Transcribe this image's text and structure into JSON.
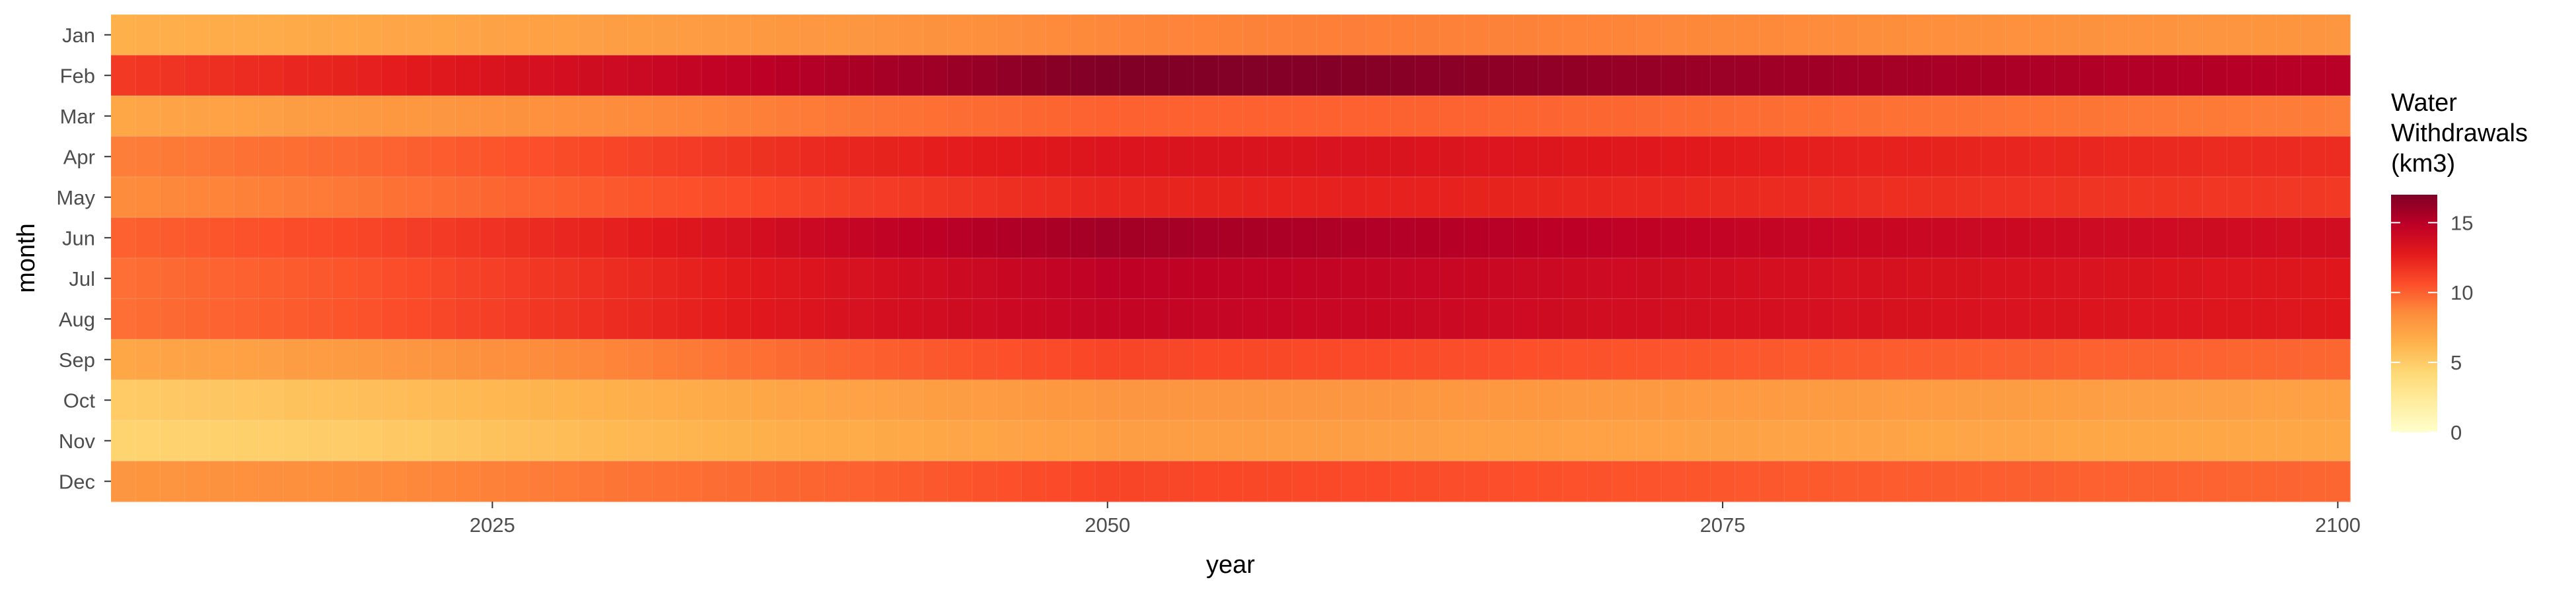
{
  "chart_data": {
    "type": "heatmap",
    "title": "",
    "xlabel": "year",
    "ylabel": "month",
    "x_start": 2010,
    "x_end": 2100,
    "xlim": [
      2009.5,
      2100.5
    ],
    "x_ticks": [
      2025,
      2050,
      2075,
      2100
    ],
    "months": [
      "Jan",
      "Feb",
      "Mar",
      "Apr",
      "May",
      "Jun",
      "Jul",
      "Aug",
      "Sep",
      "Oct",
      "Nov",
      "Dec"
    ],
    "year_anchors": [
      2010,
      2020,
      2030,
      2040,
      2050,
      2060,
      2070,
      2080,
      2090,
      2100
    ],
    "values_by_month": [
      {
        "month": "Jan",
        "values": [
          6.5,
          7.0,
          7.5,
          8.0,
          8.7,
          9.0,
          8.8,
          8.5,
          8.2,
          8.0
        ]
      },
      {
        "month": "Feb",
        "values": [
          11.5,
          12.5,
          14.0,
          15.5,
          17.0,
          16.8,
          16.3,
          15.8,
          15.3,
          15.0
        ]
      },
      {
        "month": "Mar",
        "values": [
          7.0,
          7.8,
          8.5,
          9.3,
          10.0,
          10.0,
          9.8,
          9.5,
          9.3,
          9.0
        ]
      },
      {
        "month": "Apr",
        "values": [
          9.0,
          9.8,
          11.0,
          12.3,
          13.2,
          13.3,
          13.0,
          12.5,
          12.2,
          12.0
        ]
      },
      {
        "month": "May",
        "values": [
          8.5,
          9.3,
          10.3,
          11.3,
          12.3,
          12.5,
          12.3,
          12.0,
          11.7,
          11.5
        ]
      },
      {
        "month": "Jun",
        "values": [
          10.0,
          11.0,
          12.5,
          14.5,
          15.8,
          15.3,
          14.8,
          14.3,
          14.0,
          13.8
        ]
      },
      {
        "month": "Jul",
        "values": [
          9.5,
          10.5,
          12.0,
          13.5,
          14.8,
          14.5,
          14.0,
          13.5,
          13.3,
          13.0
        ]
      },
      {
        "month": "Aug",
        "values": [
          9.5,
          10.5,
          12.0,
          13.5,
          14.5,
          14.3,
          13.8,
          13.5,
          13.2,
          13.0
        ]
      },
      {
        "month": "Sep",
        "values": [
          7.0,
          7.8,
          8.8,
          10.0,
          11.0,
          10.8,
          10.5,
          10.2,
          10.0,
          9.8
        ]
      },
      {
        "month": "Oct",
        "values": [
          5.0,
          5.7,
          6.5,
          7.3,
          8.0,
          8.0,
          7.8,
          7.7,
          7.5,
          7.4
        ]
      },
      {
        "month": "Nov",
        "values": [
          4.5,
          5.0,
          6.0,
          6.8,
          7.5,
          7.5,
          7.3,
          7.2,
          7.0,
          7.0
        ]
      },
      {
        "month": "Dec",
        "values": [
          8.0,
          8.5,
          9.3,
          10.0,
          11.0,
          10.8,
          10.5,
          10.2,
          10.0,
          9.8
        ]
      }
    ],
    "color_scale": {
      "domain": [
        0,
        17
      ],
      "stops": [
        "#ffffcc",
        "#ffeda0",
        "#fed976",
        "#feb24c",
        "#fd8d3c",
        "#fc4e2a",
        "#e31a1c",
        "#bd0026",
        "#800026"
      ]
    },
    "legend": {
      "title": [
        "Water",
        "Withdrawals",
        "(km3)"
      ],
      "ticks": [
        0,
        5,
        10,
        15
      ],
      "position": "right"
    },
    "grid": true
  }
}
